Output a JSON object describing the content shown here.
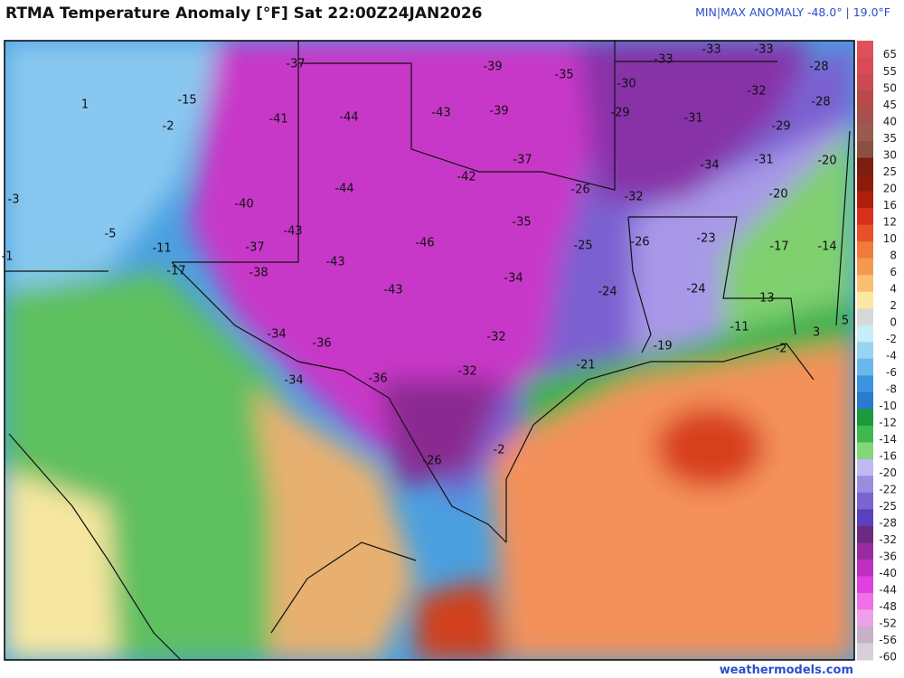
{
  "header": {
    "title": "RTMA Temperature Anomaly [°F]  Sat 22:00Z24JAN2026",
    "range": "MIN|MAX ANOMALY -48.0°  |  19.0°F"
  },
  "footer": "weathermodels.com",
  "colorbar": [
    {
      "label": "65",
      "color": "#e0505a"
    },
    {
      "label": "55",
      "color": "#d84a55"
    },
    {
      "label": "50",
      "color": "#c94a50"
    },
    {
      "label": "45",
      "color": "#b84a4a"
    },
    {
      "label": "40",
      "color": "#a85050"
    },
    {
      "label": "35",
      "color": "#9a5a50"
    },
    {
      "label": "30",
      "color": "#8a5040"
    },
    {
      "label": "25",
      "color": "#7a1e10"
    },
    {
      "label": "20",
      "color": "#8e1a0c"
    },
    {
      "label": "16",
      "color": "#b01e0c"
    },
    {
      "label": "12",
      "color": "#d8301a"
    },
    {
      "label": "10",
      "color": "#e8502a"
    },
    {
      "label": "8",
      "color": "#f07a3a"
    },
    {
      "label": "6",
      "color": "#f49a50"
    },
    {
      "label": "4",
      "color": "#f8c070"
    },
    {
      "label": "2",
      "color": "#fce8a0"
    },
    {
      "label": "0",
      "color": "#d8d8d8"
    },
    {
      "label": "-2",
      "color": "#c8ecf8"
    },
    {
      "label": "-4",
      "color": "#98d4f0"
    },
    {
      "label": "-6",
      "color": "#68b8ec"
    },
    {
      "label": "-8",
      "color": "#3c94e0"
    },
    {
      "label": "-10",
      "color": "#2a7ad0"
    },
    {
      "label": "-12",
      "color": "#1a9a3a"
    },
    {
      "label": "-14",
      "color": "#40b850"
    },
    {
      "label": "-16",
      "color": "#80d878"
    },
    {
      "label": "-20",
      "color": "#c0b8f0"
    },
    {
      "label": "-22",
      "color": "#9c8ce0"
    },
    {
      "label": "-25",
      "color": "#7a64d0"
    },
    {
      "label": "-28",
      "color": "#5a40c0"
    },
    {
      "label": "-32",
      "color": "#6a2a80"
    },
    {
      "label": "-36",
      "color": "#9a2aa0"
    },
    {
      "label": "-40",
      "color": "#c030c0"
    },
    {
      "label": "-44",
      "color": "#e040e0"
    },
    {
      "label": "-48",
      "color": "#f070e8"
    },
    {
      "label": "-52",
      "color": "#f0a0e8"
    },
    {
      "label": "-56",
      "color": "#c8b0c8"
    },
    {
      "label": "-60",
      "color": "#d8d0d8"
    }
  ],
  "points": [
    "-37",
    "-39",
    "-35",
    "-33",
    "-33",
    "-33",
    "-28",
    "-30",
    "-32",
    "-28",
    "1",
    "-15",
    "-41",
    "-44",
    "-43",
    "-39",
    "-29",
    "-31",
    "-29",
    "-2",
    "-37",
    "-34",
    "-31",
    "-20",
    "-42",
    "-44",
    "-26",
    "-32",
    "-20",
    "-3",
    "-40",
    "-35",
    "-43",
    "-46",
    "-26",
    "-23",
    "-25",
    "-17",
    "-14",
    "-5",
    "-11",
    "-37",
    "-1",
    "-17",
    "-38",
    "-43",
    "-34",
    "-43",
    "-24",
    "-24",
    "-13",
    "5",
    "-11",
    "3",
    "-32",
    "-34",
    "-36",
    "-2",
    "-19",
    "-32",
    "-36",
    "-34",
    "-21",
    "-2",
    "-26"
  ]
}
